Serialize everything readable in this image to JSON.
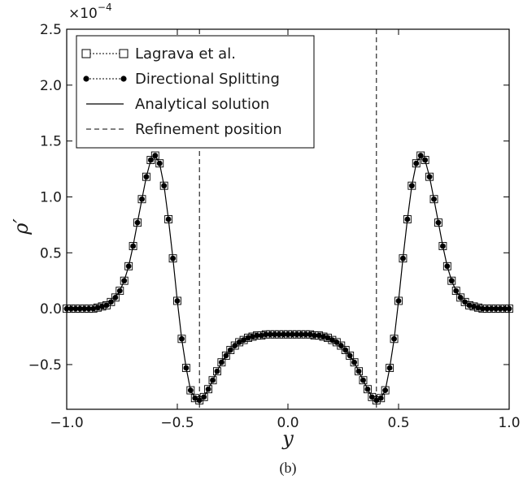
{
  "chart_data": {
    "type": "line",
    "subfigure_caption": "(b)",
    "xlabel": "y",
    "ylabel": "ρ′",
    "y_multiplier_label": "×10",
    "y_multiplier_exponent": "−4",
    "xlim": [
      -1.0,
      1.0
    ],
    "ylim": [
      -0.9,
      2.5
    ],
    "x_ticks": [
      -1.0,
      -0.5,
      0.0,
      0.5,
      1.0
    ],
    "x_tick_labels": [
      "−1.0",
      "−0.5",
      "0.0",
      "0.5",
      "1.0"
    ],
    "y_ticks": [
      -0.5,
      0.0,
      0.5,
      1.0,
      1.5,
      2.0,
      2.5
    ],
    "y_tick_labels": [
      "−0.5",
      "0.0",
      "0.5",
      "1.0",
      "1.5",
      "2.0",
      "2.5"
    ],
    "grid": false,
    "legend_position": "upper-left",
    "refinement_x": [
      -0.4,
      0.4
    ],
    "series": [
      {
        "name": "Lagrava et al.",
        "style": "open-square-dotted",
        "color": "#000000"
      },
      {
        "name": "Directional Splitting",
        "style": "filled-circle-dotted",
        "color": "#000000"
      },
      {
        "name": "Analytical solution",
        "style": "solid-line",
        "color": "#000000"
      },
      {
        "name": "Refinement position",
        "style": "dashed-line",
        "color": "#000000"
      }
    ],
    "x": [
      -1.0,
      -0.98,
      -0.96,
      -0.94,
      -0.92,
      -0.9,
      -0.88,
      -0.86,
      -0.84,
      -0.82,
      -0.8,
      -0.78,
      -0.76,
      -0.74,
      -0.72,
      -0.7,
      -0.68,
      -0.66,
      -0.64,
      -0.62,
      -0.6,
      -0.58,
      -0.56,
      -0.54,
      -0.52,
      -0.5,
      -0.48,
      -0.46,
      -0.44,
      -0.42,
      -0.4,
      -0.38,
      -0.36,
      -0.34,
      -0.32,
      -0.3,
      -0.28,
      -0.26,
      -0.24,
      -0.22,
      -0.2,
      -0.18,
      -0.16,
      -0.14,
      -0.12,
      -0.1,
      -0.08,
      -0.06,
      -0.04,
      -0.02,
      0.0,
      0.02,
      0.04,
      0.06,
      0.08,
      0.1,
      0.12,
      0.14,
      0.16,
      0.18,
      0.2,
      0.22,
      0.24,
      0.26,
      0.28,
      0.3,
      0.32,
      0.34,
      0.36,
      0.38,
      0.4,
      0.42,
      0.44,
      0.46,
      0.48,
      0.5,
      0.52,
      0.54,
      0.56,
      0.58,
      0.6,
      0.62,
      0.64,
      0.66,
      0.68,
      0.7,
      0.72,
      0.74,
      0.76,
      0.78,
      0.8,
      0.82,
      0.84,
      0.86,
      0.88,
      0.9,
      0.92,
      0.94,
      0.96,
      0.98,
      1.0
    ],
    "y": [
      0.0,
      0.0,
      0.0,
      0.0,
      0.0,
      0.0,
      0.0,
      0.01,
      0.02,
      0.03,
      0.06,
      0.1,
      0.16,
      0.25,
      0.38,
      0.56,
      0.77,
      0.98,
      1.18,
      1.33,
      1.37,
      1.3,
      1.1,
      0.8,
      0.45,
      0.07,
      -0.27,
      -0.53,
      -0.73,
      -0.8,
      -0.82,
      -0.79,
      -0.72,
      -0.64,
      -0.56,
      -0.48,
      -0.42,
      -0.37,
      -0.33,
      -0.3,
      -0.28,
      -0.26,
      -0.25,
      -0.24,
      -0.24,
      -0.23,
      -0.23,
      -0.23,
      -0.23,
      -0.23,
      -0.23,
      -0.23,
      -0.23,
      -0.23,
      -0.23,
      -0.23,
      -0.24,
      -0.24,
      -0.25,
      -0.26,
      -0.28,
      -0.3,
      -0.33,
      -0.37,
      -0.42,
      -0.48,
      -0.56,
      -0.64,
      -0.72,
      -0.79,
      -0.82,
      -0.8,
      -0.73,
      -0.53,
      -0.27,
      0.07,
      0.45,
      0.8,
      1.1,
      1.3,
      1.37,
      1.33,
      1.18,
      0.98,
      0.77,
      0.56,
      0.38,
      0.25,
      0.16,
      0.1,
      0.06,
      0.03,
      0.02,
      0.01,
      0.0,
      0.0,
      0.0,
      0.0,
      0.0,
      0.0,
      0.0
    ]
  }
}
